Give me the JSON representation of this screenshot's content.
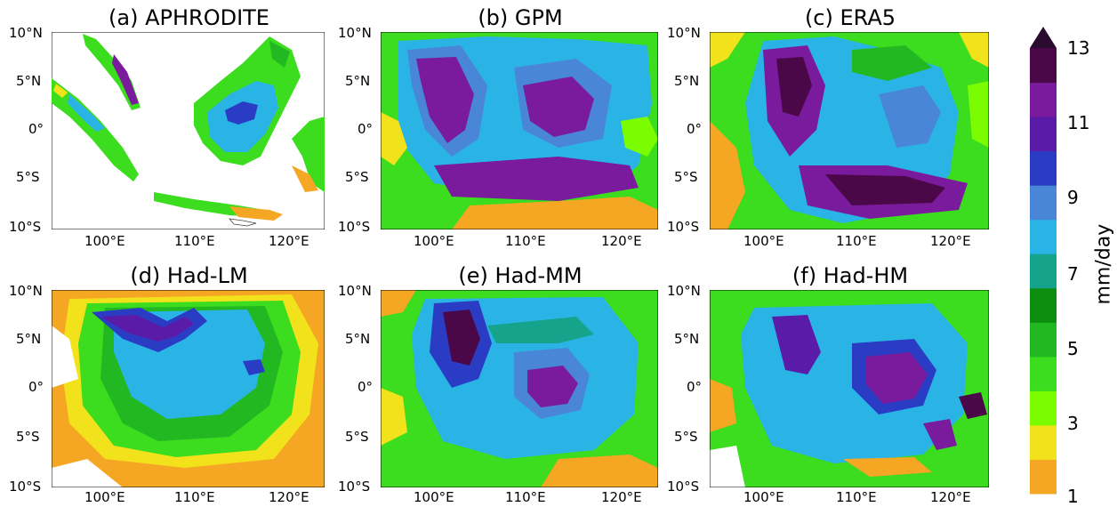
{
  "panels": [
    {
      "title": "(a) APHRODITE"
    },
    {
      "title": "(b) GPM"
    },
    {
      "title": "(c) ERA5"
    },
    {
      "title": "(d) Had-LM"
    },
    {
      "title": "(e) Had-MM"
    },
    {
      "title": "(f) Had-HM"
    }
  ],
  "axes": {
    "lat_ticks": [
      "10°N",
      "5°N",
      "0°",
      "5°S",
      "10°S"
    ],
    "lon_ticks": [
      "100°E",
      "110°E",
      "120°E"
    ]
  },
  "colorbar": {
    "label": "mm/day",
    "ticks": [
      "13",
      "11",
      "9",
      "7",
      "5",
      "3",
      "1"
    ],
    "colors": [
      "#f5a623",
      "#f2e21c",
      "#7cfc00",
      "#3cdc1e",
      "#22b822",
      "#0e8e0e",
      "#16a38c",
      "#2ab4e6",
      "#4a86d8",
      "#2b3cc4",
      "#5a1ca8",
      "#7a1a9c",
      "#4a0848"
    ]
  }
}
